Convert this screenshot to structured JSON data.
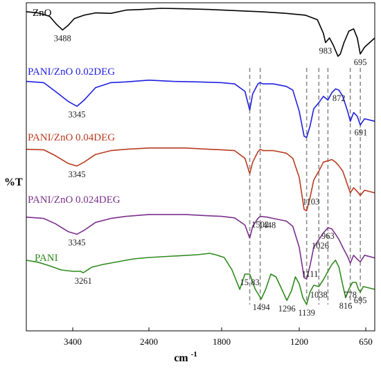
{
  "chart_data": {
    "type": "line",
    "title": "",
    "xlabel": "cm",
    "xlabel_superscript": "-1",
    "ylabel": "%T",
    "xlim": [
      3800,
      600
    ],
    "x_reversed": true,
    "grid": false,
    "xticks": [
      {
        "value": 3400,
        "label": "3400"
      },
      {
        "value": 2400,
        "label": "2400"
      },
      {
        "value": 1800,
        "label": "1800"
      },
      {
        "value": 1200,
        "label": "1200"
      },
      {
        "value": 650,
        "label": "650"
      }
    ],
    "reference_lines": [
      1583,
      1502,
      1139,
      1038,
      963,
      778,
      695
    ],
    "series": [
      {
        "name": "ZnO",
        "color": "#000000",
        "points": [
          [
            3800,
            0.15
          ],
          [
            3700,
            0.2
          ],
          [
            3600,
            0.35
          ],
          [
            3540,
            0.7
          ],
          [
            3488,
            0.95
          ],
          [
            3440,
            0.75
          ],
          [
            3380,
            0.45
          ],
          [
            3250,
            0.3
          ],
          [
            3100,
            0.2
          ],
          [
            2900,
            0.22
          ],
          [
            2700,
            0.08
          ],
          [
            2500,
            0.05
          ],
          [
            2300,
            0.0
          ],
          [
            2100,
            0.02
          ],
          [
            1900,
            0.05
          ],
          [
            1700,
            0.1
          ],
          [
            1500,
            0.15
          ],
          [
            1300,
            0.22
          ],
          [
            1150,
            0.3
          ],
          [
            1050,
            0.5
          ],
          [
            1000,
            1.1
          ],
          [
            983,
            1.5
          ],
          [
            950,
            1.3
          ],
          [
            920,
            1.6
          ],
          [
            880,
            2.1
          ],
          [
            860,
            2.0
          ],
          [
            830,
            1.5
          ],
          [
            790,
            1.0
          ],
          [
            750,
            0.9
          ],
          [
            720,
            1.3
          ],
          [
            695,
            2.0
          ],
          [
            660,
            1.7
          ],
          [
            600,
            1.3
          ]
        ],
        "annotations": [
          {
            "x": 3488,
            "text": "3488"
          },
          {
            "x": 983,
            "text": "983"
          },
          {
            "x": 695,
            "text": "695"
          }
        ]
      },
      {
        "name": "PANI/ZnO 0.02DEG",
        "color": "#1f1fe0",
        "points": [
          [
            3800,
            0.1
          ],
          [
            3650,
            0.15
          ],
          [
            3550,
            0.5
          ],
          [
            3440,
            0.9
          ],
          [
            3345,
            1.1
          ],
          [
            3250,
            0.85
          ],
          [
            3100,
            0.35
          ],
          [
            2900,
            0.15
          ],
          [
            2700,
            0.12
          ],
          [
            2400,
            0.05
          ],
          [
            2200,
            0.1
          ],
          [
            2000,
            0.12
          ],
          [
            1800,
            0.15
          ],
          [
            1700,
            0.2
          ],
          [
            1620,
            0.5
          ],
          [
            1583,
            1.25
          ],
          [
            1560,
            0.6
          ],
          [
            1520,
            0.2
          ],
          [
            1502,
            0.15
          ],
          [
            1480,
            0.2
          ],
          [
            1400,
            0.2
          ],
          [
            1300,
            0.3
          ],
          [
            1250,
            0.45
          ],
          [
            1200,
            1.3
          ],
          [
            1160,
            2.3
          ],
          [
            1139,
            2.35
          ],
          [
            1111,
            1.9
          ],
          [
            1080,
            1.2
          ],
          [
            1038,
            0.95
          ],
          [
            1000,
            0.7
          ],
          [
            963,
            0.85
          ],
          [
            930,
            0.55
          ],
          [
            900,
            0.4
          ],
          [
            872,
            0.45
          ],
          [
            840,
            0.7
          ],
          [
            800,
            1.3
          ],
          [
            778,
            1.7
          ],
          [
            750,
            1.35
          ],
          [
            720,
            1.5
          ],
          [
            695,
            1.85
          ],
          [
            660,
            1.6
          ],
          [
            600,
            1.7
          ]
        ],
        "annotations": [
          {
            "x": 3345,
            "text": "3345"
          },
          {
            "x": 872,
            "text": "872"
          },
          {
            "x": 691,
            "text": "691"
          }
        ]
      },
      {
        "name": "PANI/ZnO 0.04DEG",
        "color": "#b83a1f",
        "points": [
          [
            3800,
            0.1
          ],
          [
            3650,
            0.12
          ],
          [
            3550,
            0.35
          ],
          [
            3440,
            0.65
          ],
          [
            3345,
            0.75
          ],
          [
            3250,
            0.6
          ],
          [
            3100,
            0.3
          ],
          [
            2900,
            0.15
          ],
          [
            2700,
            0.1
          ],
          [
            2400,
            0.05
          ],
          [
            2100,
            0.05
          ],
          [
            1900,
            0.1
          ],
          [
            1800,
            0.12
          ],
          [
            1700,
            0.15
          ],
          [
            1620,
            0.45
          ],
          [
            1583,
            1.05
          ],
          [
            1560,
            0.6
          ],
          [
            1520,
            0.2
          ],
          [
            1502,
            0.1
          ],
          [
            1480,
            0.15
          ],
          [
            1400,
            0.15
          ],
          [
            1300,
            0.25
          ],
          [
            1250,
            0.45
          ],
          [
            1200,
            1.2
          ],
          [
            1160,
            2.45
          ],
          [
            1139,
            2.5
          ],
          [
            1111,
            2.0
          ],
          [
            1080,
            1.3
          ],
          [
            1038,
            0.95
          ],
          [
            1000,
            0.6
          ],
          [
            963,
            0.55
          ],
          [
            930,
            0.5
          ],
          [
            900,
            0.6
          ],
          [
            872,
            0.75
          ],
          [
            840,
            0.95
          ],
          [
            800,
            1.5
          ],
          [
            778,
            1.8
          ],
          [
            750,
            1.6
          ],
          [
            720,
            1.75
          ],
          [
            695,
            1.9
          ],
          [
            660,
            1.7
          ],
          [
            600,
            1.8
          ]
        ],
        "annotations": [
          {
            "x": 3345,
            "text": "3345"
          },
          {
            "x": 1103,
            "text": "1103"
          }
        ]
      },
      {
        "name": "PANI/ZnO 0.024DEG",
        "color": "#7a2f8c",
        "points": [
          [
            3800,
            0.15
          ],
          [
            3650,
            0.2
          ],
          [
            3550,
            0.4
          ],
          [
            3440,
            0.7
          ],
          [
            3345,
            0.8
          ],
          [
            3250,
            0.65
          ],
          [
            3100,
            0.35
          ],
          [
            2900,
            0.2
          ],
          [
            2700,
            0.12
          ],
          [
            2400,
            0.05
          ],
          [
            2100,
            0.05
          ],
          [
            1900,
            0.1
          ],
          [
            1800,
            0.12
          ],
          [
            1700,
            0.18
          ],
          [
            1620,
            0.45
          ],
          [
            1583,
            0.95
          ],
          [
            1560,
            0.5
          ],
          [
            1520,
            0.2
          ],
          [
            1502,
            0.12
          ],
          [
            1448,
            0.15
          ],
          [
            1400,
            0.2
          ],
          [
            1300,
            0.3
          ],
          [
            1250,
            0.5
          ],
          [
            1200,
            1.3
          ],
          [
            1160,
            2.45
          ],
          [
            1139,
            2.5
          ],
          [
            1111,
            2.0
          ],
          [
            1080,
            1.3
          ],
          [
            1038,
            1.0
          ],
          [
            1000,
            0.75
          ],
          [
            963,
            0.55
          ],
          [
            930,
            0.6
          ],
          [
            900,
            0.8
          ],
          [
            872,
            1.0
          ],
          [
            840,
            1.3
          ],
          [
            800,
            1.65
          ],
          [
            778,
            1.9
          ],
          [
            750,
            1.6
          ],
          [
            720,
            1.75
          ],
          [
            695,
            1.85
          ],
          [
            660,
            1.6
          ],
          [
            600,
            1.7
          ]
        ],
        "annotations": [
          {
            "x": 3345,
            "text": "3345"
          },
          {
            "x": 1502,
            "text": "1502"
          },
          {
            "x": 1448,
            "text": "1448"
          },
          {
            "x": 1111,
            "text": "1111"
          },
          {
            "x": 1026,
            "text": "1026"
          },
          {
            "x": 963,
            "text": "963"
          }
        ]
      },
      {
        "name": "PANI",
        "color": "#2d8a1c",
        "points": [
          [
            3800,
            0.15
          ],
          [
            3700,
            0.22
          ],
          [
            3600,
            0.35
          ],
          [
            3500,
            0.5
          ],
          [
            3400,
            0.55
          ],
          [
            3300,
            0.55
          ],
          [
            3261,
            0.6
          ],
          [
            3150,
            0.4
          ],
          [
            3000,
            0.3
          ],
          [
            2800,
            0.2
          ],
          [
            2600,
            0.1
          ],
          [
            2400,
            0.05
          ],
          [
            2200,
            0.0
          ],
          [
            2000,
            -0.05
          ],
          [
            1900,
            -0.1
          ],
          [
            1850,
            -0.05
          ],
          [
            1780,
            0.05
          ],
          [
            1720,
            0.5
          ],
          [
            1660,
            1.2
          ],
          [
            1620,
            0.65
          ],
          [
            1583,
            0.65
          ],
          [
            1540,
            1.2
          ],
          [
            1494,
            1.55
          ],
          [
            1460,
            1.2
          ],
          [
            1420,
            0.65
          ],
          [
            1380,
            0.75
          ],
          [
            1340,
            1.15
          ],
          [
            1296,
            1.6
          ],
          [
            1260,
            1.25
          ],
          [
            1230,
            0.75
          ],
          [
            1200,
            1.0
          ],
          [
            1170,
            1.5
          ],
          [
            1139,
            1.75
          ],
          [
            1111,
            1.3
          ],
          [
            1080,
            1.05
          ],
          [
            1038,
            1.1
          ],
          [
            1000,
            0.85
          ],
          [
            963,
            0.55
          ],
          [
            930,
            0.3
          ],
          [
            900,
            0.15
          ],
          [
            872,
            0.4
          ],
          [
            840,
            1.05
          ],
          [
            816,
            1.5
          ],
          [
            790,
            1.2
          ],
          [
            760,
            0.95
          ],
          [
            730,
            0.95
          ],
          [
            710,
            1.2
          ],
          [
            695,
            1.3
          ],
          [
            670,
            1.1
          ],
          [
            600,
            1.2
          ]
        ],
        "annotations": [
          {
            "x": 3261,
            "text": "3261"
          },
          {
            "x": 1583,
            "text": "15 83"
          },
          {
            "x": 1494,
            "text": "1494"
          },
          {
            "x": 1296,
            "text": "1296"
          },
          {
            "x": 1139,
            "text": "1139"
          },
          {
            "x": 1038,
            "text": "1038"
          },
          {
            "x": 816,
            "text": "816"
          },
          {
            "x": 778,
            "text": "778"
          },
          {
            "x": 695,
            "text": "695"
          }
        ]
      }
    ]
  }
}
